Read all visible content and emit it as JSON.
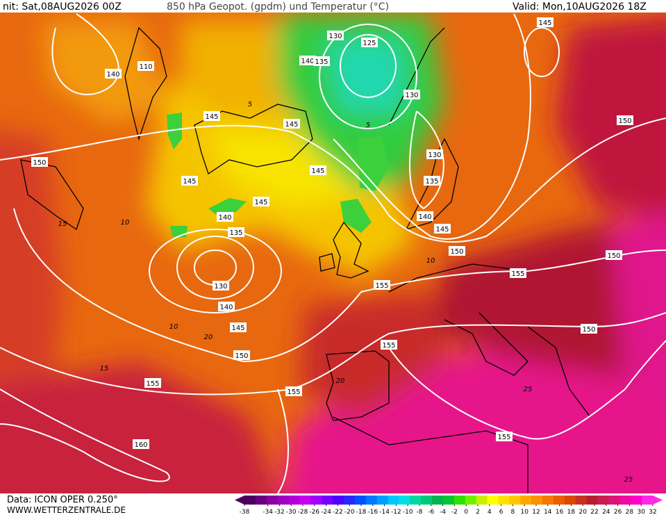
{
  "header": {
    "left": "nit: Sat,08AUG2026 00Z",
    "title": "850 hPa Geopot. (gpdm) und Temperatur (°C)",
    "valid": "Valid: Mon,10AUG2026 18Z"
  },
  "footer": {
    "source": "Data: ICON OPER 0.250°",
    "website": "WWW.WETTERZENTRALE.DE"
  },
  "colorbar": {
    "ticks": [
      -38,
      -34,
      -32,
      -30,
      -28,
      -26,
      -24,
      -22,
      -20,
      -18,
      -16,
      -14,
      -12,
      -10,
      -8,
      -6,
      -4,
      -2,
      0,
      2,
      4,
      6,
      8,
      10,
      12,
      14,
      16,
      18,
      20,
      22,
      24,
      26,
      28,
      30,
      32
    ],
    "colors": [
      "#4b0060",
      "#6a0080",
      "#8a00a0",
      "#a000c0",
      "#b400d8",
      "#c800f0",
      "#a000ff",
      "#7800ff",
      "#5000ff",
      "#2828ff",
      "#0050ff",
      "#0078ff",
      "#00a0ff",
      "#00c8ff",
      "#00e0e0",
      "#00d8a0",
      "#00c878",
      "#00b450",
      "#00c832",
      "#30e000",
      "#70f000",
      "#c8f000",
      "#ffff00",
      "#ffe000",
      "#ffc800",
      "#ffa800",
      "#ff9000",
      "#f57800",
      "#e86000",
      "#dc4800",
      "#c83020",
      "#b41e2e",
      "#c81e50",
      "#dc1478",
      "#f00aa0",
      "#ff00c8",
      "#ff28e6"
    ]
  },
  "map": {
    "geopotential_labels": [
      145,
      140,
      110,
      130,
      125,
      140,
      135,
      130,
      145,
      145,
      150,
      150,
      145,
      130,
      135,
      145,
      145,
      140,
      140,
      145,
      135,
      150,
      150,
      155,
      155,
      130,
      140,
      150,
      145,
      155,
      150,
      155,
      155,
      155,
      160
    ],
    "temperature_labels": [
      5,
      5,
      10,
      15,
      15,
      20,
      20,
      25,
      25,
      10,
      10
    ]
  }
}
